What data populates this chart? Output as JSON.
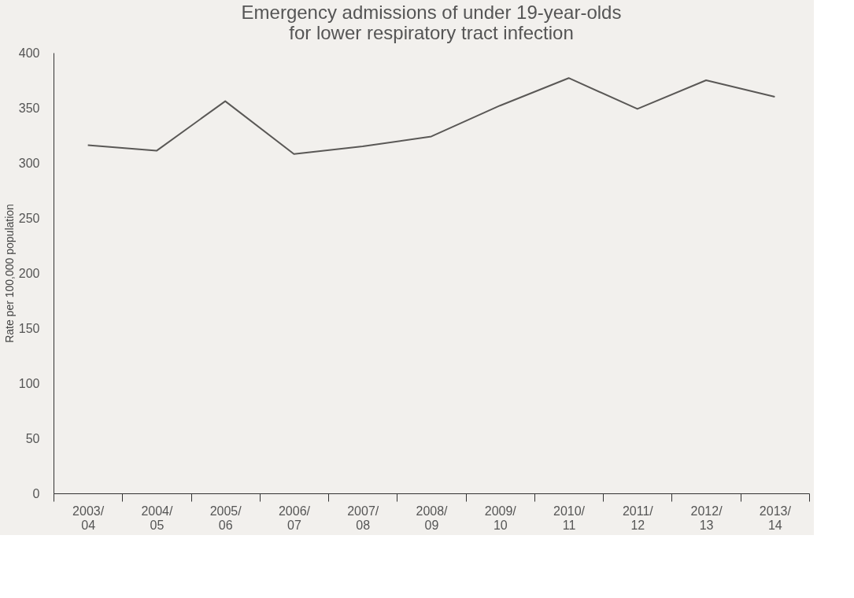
{
  "chart_data": {
    "type": "line",
    "title": [
      "Emergency admissions of under 19-year-olds",
      "for lower respiratory tract infection"
    ],
    "ylabel": "Rate per 100,000 population",
    "categories": [
      "2003/04",
      "2004/05",
      "2005/06",
      "2006/07",
      "2007/08",
      "2008/09",
      "2009/10",
      "2010/11",
      "2011/12",
      "2012/13",
      "2013/14"
    ],
    "series": [
      {
        "color": "#5a5856",
        "values": [
          316,
          311,
          356,
          308,
          315,
          324,
          352,
          377,
          349,
          375,
          360
        ]
      }
    ],
    "ylim": [
      0,
      400
    ],
    "yticks": [
      0,
      50,
      100,
      150,
      200,
      250,
      300,
      350,
      400
    ],
    "grid": false,
    "marker": "none",
    "line_style": "solid"
  }
}
